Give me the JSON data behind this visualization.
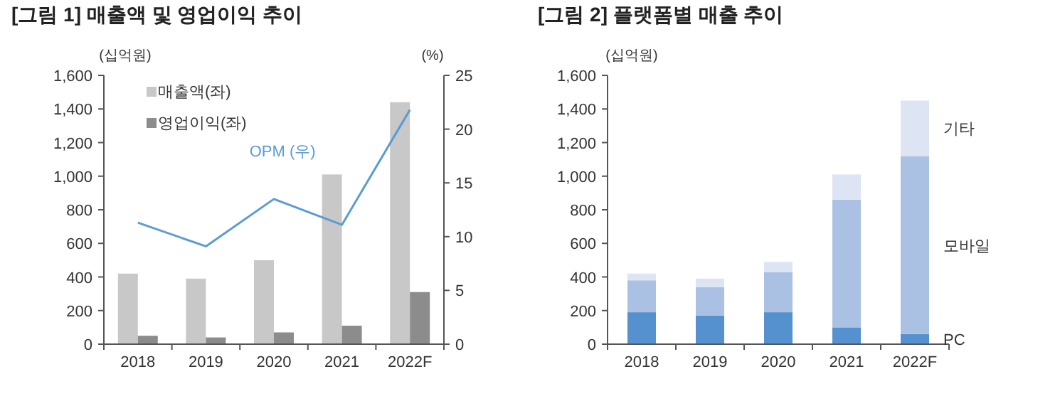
{
  "chart_data": [
    {
      "type": "bar",
      "title": "[그림 1] 매출액 및 영업이익 추이",
      "ylabel": "(십억원)",
      "y2label": "(%)",
      "categories": [
        "2018",
        "2019",
        "2020",
        "2021",
        "2022F"
      ],
      "series": [
        {
          "name": "매출액(좌)",
          "color": "#c8c8c8",
          "values": [
            420,
            390,
            500,
            1010,
            1440
          ]
        },
        {
          "name": "영업이익(좌)",
          "color": "#8c8c8c",
          "values": [
            50,
            40,
            70,
            110,
            310
          ]
        },
        {
          "name": "OPM (우)",
          "type": "line",
          "axis": "y2",
          "color": "#5b9bd5",
          "values": [
            11.3,
            9.1,
            13.5,
            11.1,
            21.8
          ]
        }
      ],
      "ylim": [
        0,
        1600
      ],
      "yticks": [
        0,
        200,
        400,
        600,
        800,
        {
          "value": 1000,
          "label": "1,000"
        },
        {
          "value": 1200,
          "label": "1,200"
        },
        {
          "value": 1400,
          "label": "1,400"
        },
        {
          "value": 1600,
          "label": "1,600"
        }
      ],
      "y2lim": [
        0,
        25
      ],
      "y2ticks": [
        0,
        5,
        10,
        15,
        20,
        25
      ],
      "legend": "top left",
      "grid": false
    },
    {
      "type": "bar",
      "title": "[그림 2] 플랫폼별 매출 추이",
      "ylabel": "(십억원)",
      "categories": [
        "2018",
        "2019",
        "2020",
        "2021",
        "2022F"
      ],
      "stacked": true,
      "series": [
        {
          "name": "PC",
          "color": "#5590cf",
          "values": [
            190,
            170,
            190,
            100,
            60
          ]
        },
        {
          "name": "모바일",
          "color": "#abc1e4",
          "values": [
            190,
            170,
            240,
            760,
            1060
          ]
        },
        {
          "name": "기타",
          "color": "#dde5f4",
          "values": [
            40,
            50,
            60,
            150,
            330
          ]
        }
      ],
      "ylim": [
        0,
        1600
      ],
      "yticks": [
        0,
        200,
        400,
        600,
        800,
        {
          "value": 1000,
          "label": "1,000"
        },
        {
          "value": 1200,
          "label": "1,200"
        },
        {
          "value": 1400,
          "label": "1,400"
        },
        {
          "value": 1600,
          "label": "1,600"
        }
      ],
      "legend": false,
      "grid": false
    }
  ]
}
